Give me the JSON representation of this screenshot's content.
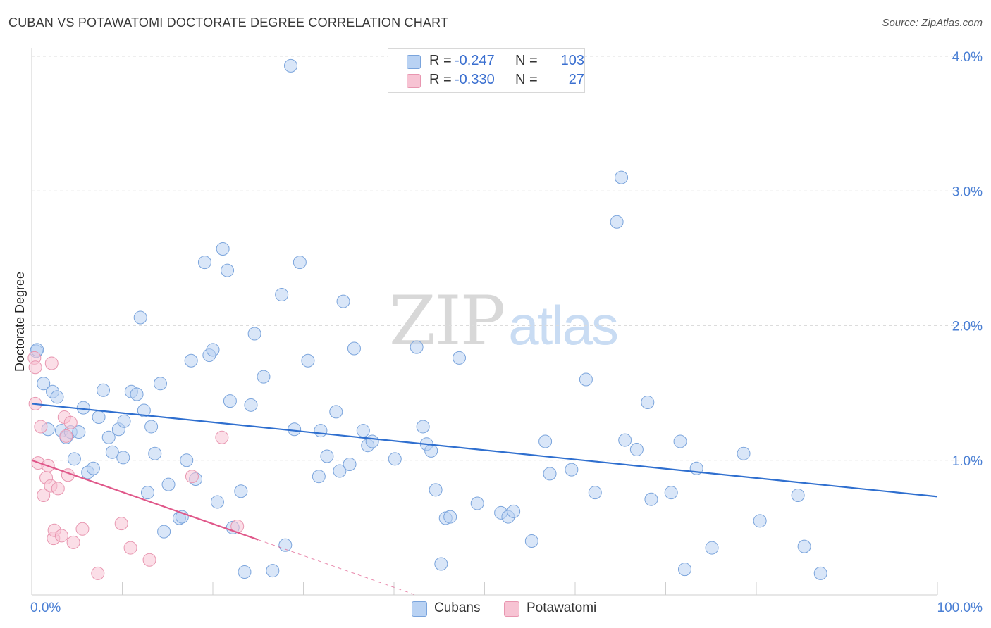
{
  "header": {
    "title": "CUBAN VS POTAWATOMI DOCTORATE DEGREE CORRELATION CHART",
    "source": "Source: ZipAtlas.com"
  },
  "watermark": {
    "zip": "ZIP",
    "atlas": "atlas"
  },
  "legend": {
    "rows": [
      {
        "r_label": "R =",
        "r_value": "-0.247",
        "n_label": "N =",
        "n_value": "103"
      },
      {
        "r_label": "R =",
        "r_value": "-0.330",
        "n_label": "N =",
        "n_value": "27"
      }
    ]
  },
  "bottom_legend": {
    "cubans": "Cubans",
    "potawatomi": "Potawatomi"
  },
  "colors": {
    "cubans_fill": "#b9d2f3",
    "cubans_stroke": "#7aa4dc",
    "cubans_line": "#2f6fcf",
    "potawatomi_fill": "#f7c3d3",
    "potawatomi_stroke": "#e896b0",
    "potawatomi_line": "#e0588a",
    "grid": "#dcdcdc",
    "tick_text": "#4a7fd4"
  },
  "chart_data": {
    "type": "scatter",
    "title": "CUBAN VS POTAWATOMI DOCTORATE DEGREE CORRELATION CHART",
    "xlabel": "",
    "ylabel": "Doctorate Degree",
    "xlim": [
      0,
      100
    ],
    "ylim": [
      0,
      4.0
    ],
    "x_tick_labels": [
      "0.0%",
      "100.0%"
    ],
    "y_ticks": [
      1.0,
      2.0,
      3.0,
      4.0
    ],
    "y_tick_labels": [
      "1.0%",
      "2.0%",
      "3.0%",
      "4.0%"
    ],
    "series": [
      {
        "name": "Cubans",
        "R": -0.247,
        "N": 103,
        "trend": {
          "x": [
            0,
            100
          ],
          "y": [
            1.42,
            0.73
          ]
        },
        "points": [
          [
            0.5,
            1.81
          ],
          [
            0.6,
            1.82
          ],
          [
            1.3,
            1.57
          ],
          [
            1.8,
            1.23
          ],
          [
            2.3,
            1.51
          ],
          [
            2.8,
            1.47
          ],
          [
            3.3,
            1.22
          ],
          [
            3.8,
            1.17
          ],
          [
            4.3,
            1.21
          ],
          [
            4.7,
            1.01
          ],
          [
            5.2,
            1.21
          ],
          [
            5.7,
            1.39
          ],
          [
            6.2,
            0.91
          ],
          [
            6.8,
            0.94
          ],
          [
            7.4,
            1.32
          ],
          [
            7.9,
            1.52
          ],
          [
            8.5,
            1.17
          ],
          [
            8.9,
            1.06
          ],
          [
            9.6,
            1.23
          ],
          [
            10.1,
            1.02
          ],
          [
            10.2,
            1.29
          ],
          [
            11.0,
            1.51
          ],
          [
            11.6,
            1.49
          ],
          [
            12.0,
            2.06
          ],
          [
            12.4,
            1.37
          ],
          [
            12.8,
            0.76
          ],
          [
            13.2,
            1.25
          ],
          [
            13.6,
            1.05
          ],
          [
            14.2,
            1.57
          ],
          [
            14.6,
            0.47
          ],
          [
            15.1,
            0.82
          ],
          [
            16.3,
            0.57
          ],
          [
            16.6,
            0.58
          ],
          [
            17.1,
            1.0
          ],
          [
            17.6,
            1.74
          ],
          [
            18.1,
            0.86
          ],
          [
            19.1,
            2.47
          ],
          [
            19.6,
            1.78
          ],
          [
            20.0,
            1.82
          ],
          [
            20.5,
            0.69
          ],
          [
            21.1,
            2.57
          ],
          [
            21.6,
            2.41
          ],
          [
            21.9,
            1.44
          ],
          [
            22.2,
            0.5
          ],
          [
            23.1,
            0.77
          ],
          [
            23.5,
            0.17
          ],
          [
            24.2,
            1.41
          ],
          [
            24.6,
            1.94
          ],
          [
            25.6,
            1.62
          ],
          [
            26.6,
            0.18
          ],
          [
            27.6,
            2.23
          ],
          [
            28.0,
            0.37
          ],
          [
            29.0,
            1.23
          ],
          [
            29.6,
            2.47
          ],
          [
            30.5,
            1.74
          ],
          [
            31.7,
            0.88
          ],
          [
            31.9,
            1.22
          ],
          [
            32.6,
            1.03
          ],
          [
            33.6,
            1.36
          ],
          [
            34.0,
            0.92
          ],
          [
            34.4,
            2.18
          ],
          [
            35.1,
            0.97
          ],
          [
            35.6,
            1.83
          ],
          [
            36.6,
            1.22
          ],
          [
            37.1,
            1.11
          ],
          [
            37.6,
            1.14
          ],
          [
            40.1,
            1.01
          ],
          [
            42.5,
            1.84
          ],
          [
            43.2,
            1.25
          ],
          [
            43.6,
            1.12
          ],
          [
            44.1,
            1.07
          ],
          [
            44.6,
            0.78
          ],
          [
            45.2,
            0.23
          ],
          [
            45.7,
            0.57
          ],
          [
            46.2,
            0.58
          ],
          [
            47.2,
            1.76
          ],
          [
            49.2,
            0.68
          ],
          [
            51.8,
            0.61
          ],
          [
            52.6,
            0.58
          ],
          [
            53.2,
            0.62
          ],
          [
            55.2,
            0.4
          ],
          [
            56.7,
            1.14
          ],
          [
            57.2,
            0.9
          ],
          [
            59.6,
            0.93
          ],
          [
            61.2,
            1.6
          ],
          [
            62.2,
            0.76
          ],
          [
            64.6,
            2.77
          ],
          [
            65.1,
            3.1
          ],
          [
            65.5,
            1.15
          ],
          [
            66.8,
            1.08
          ],
          [
            68.0,
            1.43
          ],
          [
            68.4,
            0.71
          ],
          [
            70.6,
            0.76
          ],
          [
            71.6,
            1.14
          ],
          [
            72.1,
            0.19
          ],
          [
            73.4,
            0.94
          ],
          [
            75.1,
            0.35
          ],
          [
            78.6,
            1.05
          ],
          [
            80.4,
            0.55
          ],
          [
            84.6,
            0.74
          ],
          [
            85.3,
            0.36
          ],
          [
            87.1,
            0.16
          ],
          [
            28.6,
            3.93
          ]
        ]
      },
      {
        "name": "Potawatomi",
        "R": -0.33,
        "N": 27,
        "trend": {
          "x": [
            0,
            25
          ],
          "y": [
            1.0,
            0.41
          ]
        },
        "points": [
          [
            0.3,
            1.76
          ],
          [
            0.4,
            1.69
          ],
          [
            0.4,
            1.42
          ],
          [
            0.7,
            0.98
          ],
          [
            1.0,
            1.25
          ],
          [
            1.3,
            0.74
          ],
          [
            1.6,
            0.87
          ],
          [
            1.8,
            0.96
          ],
          [
            2.1,
            0.81
          ],
          [
            2.2,
            1.72
          ],
          [
            2.4,
            0.42
          ],
          [
            2.5,
            0.48
          ],
          [
            2.9,
            0.79
          ],
          [
            3.3,
            0.44
          ],
          [
            3.6,
            1.32
          ],
          [
            3.8,
            1.18
          ],
          [
            4.0,
            0.89
          ],
          [
            4.3,
            1.28
          ],
          [
            4.6,
            0.39
          ],
          [
            5.6,
            0.49
          ],
          [
            7.3,
            0.16
          ],
          [
            9.9,
            0.53
          ],
          [
            10.9,
            0.35
          ],
          [
            13.0,
            0.26
          ],
          [
            17.7,
            0.88
          ],
          [
            21.0,
            1.17
          ],
          [
            22.7,
            0.51
          ]
        ]
      }
    ]
  }
}
